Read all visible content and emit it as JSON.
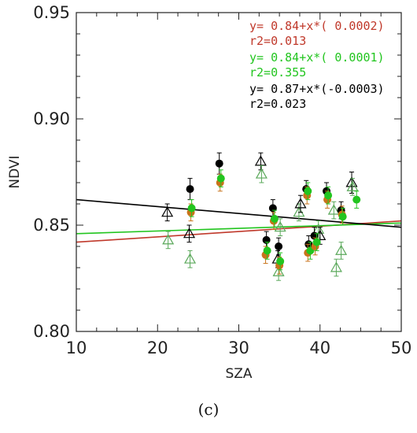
{
  "caption": "(c)",
  "chart_data": {
    "type": "scatter",
    "xlabel": "SZA",
    "ylabel": "NDVI",
    "xlim": [
      10,
      50
    ],
    "ylim": [
      0.8,
      0.95
    ],
    "x_ticks": [
      "10",
      "20",
      "30",
      "40",
      "50"
    ],
    "y_ticks": [
      "0.80",
      "0.85",
      "0.90",
      "0.95"
    ],
    "colors": {
      "red": "#c0392b",
      "green": "#22c51f",
      "black": "#000000",
      "orange": "#c8731a",
      "olive": "#8a8a2a",
      "open_green": "#5aa85a"
    },
    "annotations": [
      {
        "equation": "y= 0.84+x*( 0.0002)",
        "r2": "r2=0.013",
        "color": "#c0392b"
      },
      {
        "equation": "y= 0.84+x*( 0.0001)",
        "r2": "r2=0.355",
        "color": "#22c51f"
      },
      {
        "equation": "y= 0.87+x*(-0.0003)",
        "r2": "r2=0.023",
        "color": "#000000"
      }
    ],
    "fit_lines": [
      {
        "color": "#c0392b",
        "points": [
          [
            10,
            0.842
          ],
          [
            50,
            0.852
          ]
        ]
      },
      {
        "color": "#22c51f",
        "points": [
          [
            10,
            0.846
          ],
          [
            50,
            0.851
          ]
        ]
      },
      {
        "color": "#000000",
        "points": [
          [
            10,
            0.862
          ],
          [
            50,
            0.849
          ]
        ]
      }
    ],
    "filled_points": [
      {
        "x": 24.0,
        "y": 0.867,
        "err": 0.005,
        "color": "#000000"
      },
      {
        "x": 24.1,
        "y": 0.856,
        "err": 0.004,
        "color": "#c8731a"
      },
      {
        "x": 24.2,
        "y": 0.858,
        "err": 0.004,
        "color": "#22c51f"
      },
      {
        "x": 27.6,
        "y": 0.879,
        "err": 0.005,
        "color": "#000000"
      },
      {
        "x": 27.7,
        "y": 0.87,
        "err": 0.004,
        "color": "#c8731a"
      },
      {
        "x": 27.8,
        "y": 0.872,
        "err": 0.004,
        "color": "#22c51f"
      },
      {
        "x": 33.4,
        "y": 0.843,
        "err": 0.004,
        "color": "#000000"
      },
      {
        "x": 33.3,
        "y": 0.836,
        "err": 0.004,
        "color": "#c8731a"
      },
      {
        "x": 33.5,
        "y": 0.838,
        "err": 0.004,
        "color": "#22c51f"
      },
      {
        "x": 34.2,
        "y": 0.858,
        "err": 0.004,
        "color": "#000000"
      },
      {
        "x": 34.3,
        "y": 0.852,
        "err": 0.004,
        "color": "#c8731a"
      },
      {
        "x": 34.4,
        "y": 0.853,
        "err": 0.004,
        "color": "#22c51f"
      },
      {
        "x": 34.9,
        "y": 0.84,
        "err": 0.004,
        "color": "#000000"
      },
      {
        "x": 35.0,
        "y": 0.831,
        "err": 0.004,
        "color": "#c8731a"
      },
      {
        "x": 35.1,
        "y": 0.833,
        "err": 0.004,
        "color": "#22c51f"
      },
      {
        "x": 38.3,
        "y": 0.867,
        "err": 0.004,
        "color": "#000000"
      },
      {
        "x": 38.4,
        "y": 0.864,
        "err": 0.004,
        "color": "#c8731a"
      },
      {
        "x": 38.5,
        "y": 0.866,
        "err": 0.004,
        "color": "#22c51f"
      },
      {
        "x": 38.6,
        "y": 0.841,
        "err": 0.004,
        "color": "#000000"
      },
      {
        "x": 38.5,
        "y": 0.837,
        "err": 0.004,
        "color": "#c8731a"
      },
      {
        "x": 38.8,
        "y": 0.838,
        "err": 0.004,
        "color": "#22c51f"
      },
      {
        "x": 39.3,
        "y": 0.845,
        "err": 0.004,
        "color": "#000000"
      },
      {
        "x": 39.4,
        "y": 0.84,
        "err": 0.004,
        "color": "#c8731a"
      },
      {
        "x": 39.6,
        "y": 0.842,
        "err": 0.004,
        "color": "#22c51f"
      },
      {
        "x": 40.8,
        "y": 0.866,
        "err": 0.004,
        "color": "#000000"
      },
      {
        "x": 40.9,
        "y": 0.862,
        "err": 0.004,
        "color": "#c8731a"
      },
      {
        "x": 41.0,
        "y": 0.864,
        "err": 0.004,
        "color": "#22c51f"
      },
      {
        "x": 42.6,
        "y": 0.857,
        "err": 0.004,
        "color": "#000000"
      },
      {
        "x": 42.7,
        "y": 0.855,
        "err": 0.004,
        "color": "#c8731a"
      },
      {
        "x": 42.8,
        "y": 0.854,
        "err": 0.004,
        "color": "#22c51f"
      },
      {
        "x": 44.5,
        "y": 0.862,
        "err": 0.004,
        "color": "#22c51f"
      }
    ],
    "open_triangles": [
      {
        "x": 21.2,
        "y": 0.856,
        "err": 0.004,
        "color": "#000000"
      },
      {
        "x": 21.3,
        "y": 0.843,
        "err": 0.004,
        "color": "#5aa85a"
      },
      {
        "x": 23.9,
        "y": 0.846,
        "err": 0.004,
        "color": "#000000"
      },
      {
        "x": 24.0,
        "y": 0.834,
        "err": 0.004,
        "color": "#5aa85a"
      },
      {
        "x": 32.7,
        "y": 0.88,
        "err": 0.004,
        "color": "#000000"
      },
      {
        "x": 32.8,
        "y": 0.874,
        "err": 0.004,
        "color": "#5aa85a"
      },
      {
        "x": 34.8,
        "y": 0.834,
        "err": 0.004,
        "color": "#000000"
      },
      {
        "x": 34.9,
        "y": 0.828,
        "err": 0.004,
        "color": "#5aa85a"
      },
      {
        "x": 35.1,
        "y": 0.849,
        "err": 0.004,
        "color": "#5aa85a"
      },
      {
        "x": 37.4,
        "y": 0.856,
        "err": 0.004,
        "color": "#5aa85a"
      },
      {
        "x": 37.6,
        "y": 0.86,
        "err": 0.004,
        "color": "#000000"
      },
      {
        "x": 39.8,
        "y": 0.848,
        "err": 0.004,
        "color": "#5aa85a"
      },
      {
        "x": 40.0,
        "y": 0.845,
        "err": 0.004,
        "color": "#000000"
      },
      {
        "x": 41.7,
        "y": 0.857,
        "err": 0.004,
        "color": "#5aa85a"
      },
      {
        "x": 42.0,
        "y": 0.83,
        "err": 0.004,
        "color": "#5aa85a"
      },
      {
        "x": 42.6,
        "y": 0.838,
        "err": 0.004,
        "color": "#5aa85a"
      },
      {
        "x": 43.9,
        "y": 0.87,
        "err": 0.005,
        "color": "#000000"
      },
      {
        "x": 44.0,
        "y": 0.868,
        "err": 0.004,
        "color": "#5aa85a"
      }
    ]
  }
}
